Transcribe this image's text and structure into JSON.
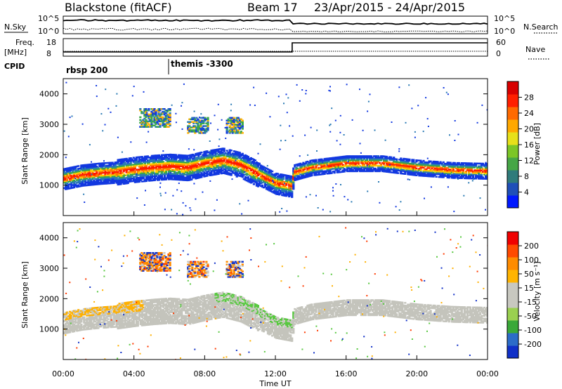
{
  "header": {
    "station": "Blackstone (fitACF)",
    "beam": "Beam 17",
    "dates": "23/Apr/2015 - 24/Apr/2015"
  },
  "top_panels": {
    "nsky_label": "N.Sky",
    "nsearch_label": "N.Search",
    "nave_label": "Nave",
    "freq_label": "Freq.",
    "freq_unit": "[MHz]",
    "cpid_label": "CPID",
    "noise_ticks_left": [
      "10^5",
      "10^0"
    ],
    "noise_ticks_right": [
      "10^5",
      "10^0"
    ],
    "freq_ticks": [
      "18",
      "8"
    ],
    "nave_ticks": [
      "60",
      "0"
    ],
    "cpid_segments": [
      {
        "name": "rbsp 200",
        "start_hour": 0
      },
      {
        "name": "themis -3300",
        "start_hour": 6
      }
    ]
  },
  "power_panel": {
    "ylabel": "Slant Range [km]",
    "colorbar_label": "Power [dB]",
    "colorbar_ticks": [
      "28",
      "24",
      "20",
      "16",
      "12",
      "8",
      "4"
    ],
    "colorbar_colors": [
      "#0018ff",
      "#1f4fb8",
      "#2f7b7b",
      "#46a646",
      "#7cc626",
      "#e7e01a",
      "#ffa800",
      "#ff6a00",
      "#ff1f00",
      "#d80000"
    ]
  },
  "velocity_panel": {
    "ylabel": "Slant Range [km]",
    "colorbar_label": "Velocity [m s⁻¹]",
    "colorbar_ticks": [
      "200",
      "100",
      "50",
      "15",
      "-15",
      "-50",
      "-100",
      "-200"
    ],
    "colorbar_colors": [
      "#1030c8",
      "#2c6cc8",
      "#3aa838",
      "#9ad050",
      "#c8c8c0",
      "#c8c8c0",
      "#ffb400",
      "#ff8c00",
      "#ff4a00",
      "#f00000"
    ]
  },
  "xaxis": {
    "label": "Time UT",
    "ticks": [
      "00:00",
      "04:00",
      "08:00",
      "12:00",
      "16:00",
      "20:00",
      "00:00"
    ]
  },
  "chart_data": {
    "type": "heatmap",
    "title": "Blackstone (fitACF)",
    "xlabel": "Time UT",
    "ylabel": "Slant Range [km]",
    "xlim": [
      0,
      24
    ],
    "ylim": [
      0,
      4500
    ],
    "ground_scatter_band_km": {
      "hours": [
        0,
        1,
        2,
        3,
        4,
        5,
        6,
        7,
        8,
        9,
        10,
        11,
        12,
        12.9,
        13,
        14,
        16,
        18,
        20,
        22,
        24
      ],
      "center": [
        1200,
        1320,
        1380,
        1420,
        1500,
        1560,
        1600,
        1560,
        1700,
        1800,
        1650,
        1350,
        1050,
        950,
        1400,
        1560,
        1700,
        1700,
        1560,
        1480,
        1450
      ]
    },
    "sea_scatter_patches_km": [
      {
        "hour_start": 4.3,
        "hour_end": 6.0,
        "range": [
          2900,
          3500
        ]
      },
      {
        "hour_start": 7.0,
        "hour_end": 8.2,
        "range": [
          2700,
          3200
        ]
      },
      {
        "hour_start": 9.2,
        "hour_end": 10.1,
        "range": [
          2700,
          3200
        ]
      }
    ],
    "power_range_db": [
      0,
      30
    ],
    "velocity_range_mps": [
      -250,
      250
    ]
  }
}
